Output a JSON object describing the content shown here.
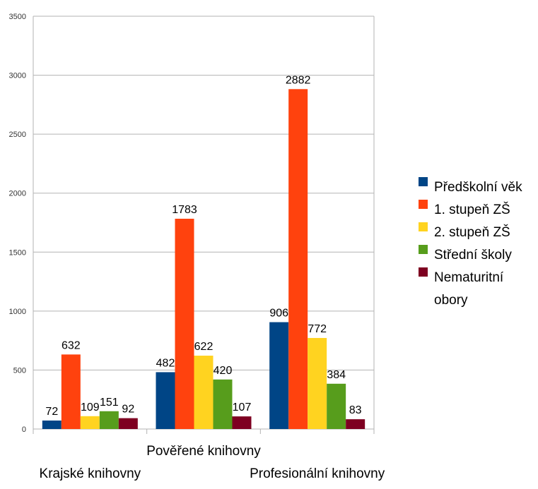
{
  "chart_data": {
    "type": "bar",
    "title": "",
    "xlabel": "",
    "ylabel": "",
    "ylim": [
      0,
      3500
    ],
    "yticks": [
      0,
      500,
      1000,
      1500,
      2000,
      2500,
      3000,
      3500
    ],
    "grid": true,
    "legend_position": "right",
    "categories": [
      "Krajské knihovny",
      "Pověřené knihovny",
      "Profesionální knihovny"
    ],
    "series": [
      {
        "name": "Předškolní věk",
        "color": "#004586",
        "values": [
          72,
          482,
          906
        ]
      },
      {
        "name": "1. stupeň ZŠ",
        "color": "#ff420e",
        "values": [
          632,
          1783,
          2882
        ]
      },
      {
        "name": "2. stupeň ZŠ",
        "color": "#ffd320",
        "values": [
          109,
          622,
          772
        ]
      },
      {
        "name": "Střední školy",
        "color": "#579d1c",
        "values": [
          151,
          420,
          384
        ]
      },
      {
        "name": "Nematuritní obory",
        "color": "#7e0021",
        "values": [
          92,
          107,
          83
        ]
      }
    ]
  }
}
